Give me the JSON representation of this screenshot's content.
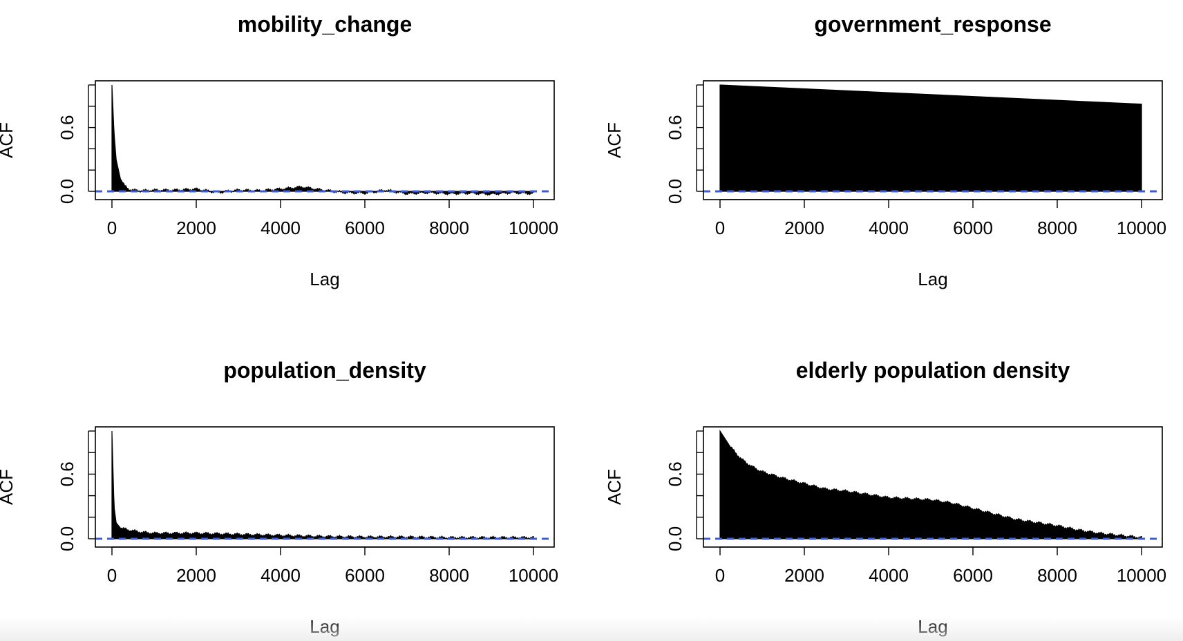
{
  "figure": {
    "colors": {
      "bars": "#000000",
      "ci_line": "#3b5bdb",
      "frame": "#000000",
      "background": "#ffffff"
    }
  },
  "chart_data": [
    {
      "type": "bar",
      "title": "mobility_change",
      "xlabel": "Lag",
      "ylabel": "ACF",
      "xlim": [
        0,
        10000
      ],
      "ylim": [
        0,
        1
      ],
      "x_ticks": [
        "0",
        "2000",
        "4000",
        "6000",
        "8000",
        "10000"
      ],
      "y_ticks": [
        "0.0",
        "0.6"
      ],
      "ci": 0.0,
      "acf_profile": {
        "x": [
          0,
          50,
          100,
          200,
          300,
          400,
          500,
          700,
          1000,
          1500,
          2000,
          2500,
          3000,
          3500,
          4000,
          4500,
          5000,
          5500,
          6000,
          6500,
          7000,
          7500,
          8000,
          8500,
          9000,
          9500,
          10000
        ],
        "y": [
          1.0,
          0.55,
          0.3,
          0.12,
          0.05,
          0.02,
          0.01,
          0.005,
          0.01,
          0.01,
          0.02,
          -0.01,
          0.01,
          0.005,
          0.02,
          0.04,
          0.01,
          -0.01,
          -0.015,
          0.01,
          -0.02,
          -0.01,
          -0.02,
          -0.015,
          -0.025,
          -0.01,
          -0.02
        ]
      }
    },
    {
      "type": "bar",
      "title": "government_response",
      "xlabel": "Lag",
      "ylabel": "ACF",
      "xlim": [
        0,
        10000
      ],
      "ylim": [
        0,
        1
      ],
      "x_ticks": [
        "0",
        "2000",
        "4000",
        "6000",
        "8000",
        "10000"
      ],
      "y_ticks": [
        "0.0",
        "0.6"
      ],
      "ci": 0.0,
      "acf_profile": {
        "x": [
          0,
          10000
        ],
        "y": [
          1.0,
          0.82
        ]
      }
    },
    {
      "type": "bar",
      "title": "population_density",
      "xlabel": "Lag",
      "ylabel": "ACF",
      "xlim": [
        0,
        10000
      ],
      "ylim": [
        0,
        1
      ],
      "x_ticks": [
        "0",
        "2000",
        "4000",
        "6000",
        "8000",
        "10000"
      ],
      "y_ticks": [
        "0.0",
        "0.6"
      ],
      "ci": 0.0,
      "acf_profile": {
        "x": [
          0,
          50,
          100,
          200,
          400,
          700,
          1000,
          2000,
          3000,
          4000,
          5000,
          6000,
          7000,
          8000,
          9000,
          10000
        ],
        "y": [
          1.0,
          0.3,
          0.15,
          0.1,
          0.08,
          0.06,
          0.05,
          0.05,
          0.04,
          0.03,
          0.02,
          0.015,
          0.015,
          0.01,
          0.01,
          0.01
        ]
      }
    },
    {
      "type": "bar",
      "title": "elderly population density",
      "xlabel": "Lag",
      "ylabel": "ACF",
      "xlim": [
        0,
        10000
      ],
      "ylim": [
        0,
        1
      ],
      "x_ticks": [
        "0",
        "2000",
        "4000",
        "6000",
        "8000",
        "10000"
      ],
      "y_ticks": [
        "0.0",
        "0.6"
      ],
      "ci": 0.0,
      "acf_profile": {
        "x": [
          0,
          250,
          500,
          750,
          1000,
          1500,
          2000,
          2500,
          3000,
          3500,
          4000,
          4500,
          5000,
          5500,
          6000,
          6500,
          7000,
          7500,
          8000,
          8500,
          9000,
          9500,
          10000
        ],
        "y": [
          1.0,
          0.85,
          0.74,
          0.67,
          0.62,
          0.56,
          0.51,
          0.46,
          0.44,
          0.41,
          0.38,
          0.37,
          0.36,
          0.33,
          0.28,
          0.23,
          0.18,
          0.15,
          0.12,
          0.08,
          0.05,
          0.03,
          0.01
        ]
      }
    }
  ]
}
